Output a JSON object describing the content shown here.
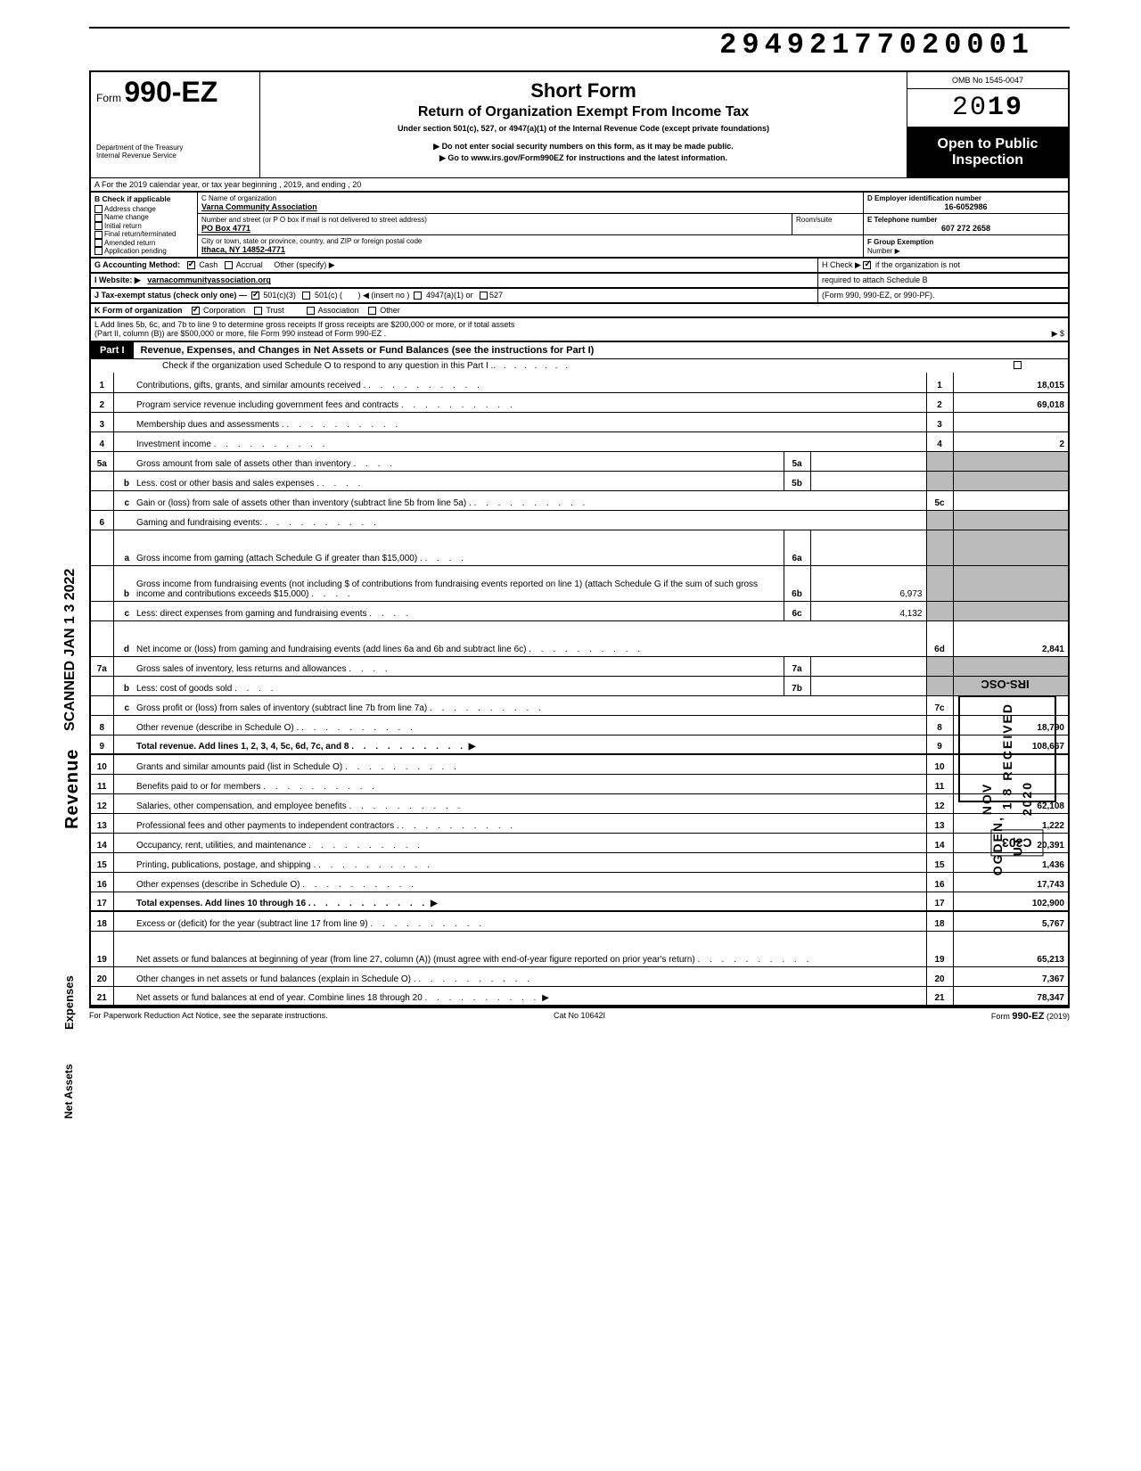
{
  "dln": "29492177020001",
  "form": {
    "prefix": "Form",
    "number": "990-EZ",
    "title": "Short Form",
    "subtitle": "Return of Organization Exempt From Income Tax",
    "under": "Under section 501(c), 527, or 4947(a)(1) of the Internal Revenue Code (except private foundations)",
    "warn": "▶ Do not enter social security numbers on this form, as it may be made public.",
    "goto": "▶ Go to www.irs.gov/Form990EZ for instructions and the latest information.",
    "dept1": "Department of the Treasury",
    "dept2": "Internal Revenue Service",
    "omb": "OMB No  1545-0047",
    "year_outline": "20",
    "year_bold": "19",
    "open1": "Open to Public",
    "open2": "Inspection"
  },
  "lineA": "A  For the 2019 calendar year, or tax year beginning                                                                              , 2019, and ending                                          , 20",
  "B": {
    "title": "B  Check if applicable",
    "items": [
      "Address change",
      "Name change",
      "Initial return",
      "Final return/terminated",
      "Amended return",
      "Application pending"
    ]
  },
  "C": {
    "lbl_name": "C  Name of organization",
    "name": "Varna Community Association",
    "lbl_addr": "Number and street (or P O  box if mail is not delivered to street address)",
    "room": "Room/suite",
    "addr": "PO Box 4771",
    "lbl_city": "City or town, state or province, country, and ZIP or foreign postal code",
    "city": "Ithaca, NY 14852-4771"
  },
  "D": {
    "lbl": "D Employer identification number",
    "val": "16-6052986"
  },
  "E": {
    "lbl": "E  Telephone number",
    "val": "607 272 2658"
  },
  "F": {
    "lbl": "F  Group Exemption",
    "lbl2": "Number ▶"
  },
  "G": {
    "lbl": "G  Accounting Method:",
    "cash": "Cash",
    "accr": "Accrual",
    "other": "Other (specify) ▶"
  },
  "H": {
    "txt1": "H  Check ▶",
    "txt2": "if the organization is not",
    "txt3": "required to attach Schedule B",
    "txt4": "(Form 990, 990-EZ, or 990-PF)."
  },
  "I": {
    "lbl": "I   Website: ▶",
    "val": "varnacommunityassociation.org"
  },
  "J": {
    "lbl": "J  Tax-exempt status (check only one) —",
    "a": "501(c)(3)",
    "b": "501(c) (",
    "b2": ")  ◀ (insert no )",
    "c": "4947(a)(1) or",
    "d": "527"
  },
  "K": {
    "lbl": "K  Form of organization",
    "a": "Corporation",
    "b": "Trust",
    "c": "Association",
    "d": "Other"
  },
  "L": {
    "l1": "L  Add lines 5b, 6c, and 7b to line 9 to determine gross receipts  If gross receipts are $200,000 or more, or if total assets",
    "l2": "(Part II, column (B)) are $500,000 or more, file Form 990 instead of Form 990-EZ .",
    "arrow": "▶   $"
  },
  "part1": {
    "tab": "Part I",
    "title": "Revenue, Expenses, and Changes in Net Assets or Fund Balances (see the instructions for Part I)",
    "check_o": "Check if the organization used Schedule O to respond to any question in this Part I ."
  },
  "rows": [
    {
      "no": "1",
      "sub": "",
      "desc": "Contributions, gifts, grants, and similar amounts received .",
      "rn": "1",
      "amt": "18,015"
    },
    {
      "no": "2",
      "sub": "",
      "desc": "Program service revenue including government fees and contracts",
      "rn": "2",
      "amt": "69,018"
    },
    {
      "no": "3",
      "sub": "",
      "desc": "Membership dues and assessments .",
      "rn": "3",
      "amt": ""
    },
    {
      "no": "4",
      "sub": "",
      "desc": "Investment income",
      "rn": "4",
      "amt": "2"
    },
    {
      "no": "5a",
      "sub": "",
      "desc": "Gross amount from sale of assets other than inventory",
      "mn": "5a",
      "mv": "",
      "rn": "",
      "amt": "",
      "shade": true
    },
    {
      "no": "",
      "sub": "b",
      "desc": "Less. cost or other basis and sales expenses .",
      "mn": "5b",
      "mv": "",
      "rn": "",
      "amt": "",
      "shade": true
    },
    {
      "no": "",
      "sub": "c",
      "desc": "Gain or (loss) from sale of assets other than inventory (subtract line 5b from line 5a)   .",
      "rn": "5c",
      "amt": ""
    },
    {
      "no": "6",
      "sub": "",
      "desc": "Gaming and fundraising events:",
      "rn": "",
      "amt": "",
      "shade": true,
      "nounder": true
    },
    {
      "no": "",
      "sub": "a",
      "desc": "Gross income from gaming (attach Schedule G if greater than $15,000) .",
      "mn": "6a",
      "mv": "",
      "rn": "",
      "amt": "",
      "shade": true,
      "tall": true
    },
    {
      "no": "",
      "sub": "b",
      "desc": "Gross income from fundraising events (not including  $                                 of contributions from fundraising events reported on line 1) (attach Schedule G if the sum of such gross income and contributions exceeds $15,000)",
      "mn": "6b",
      "mv": "6,973",
      "rn": "",
      "amt": "",
      "shade": true,
      "tall": true
    },
    {
      "no": "",
      "sub": "c",
      "desc": "Less: direct expenses from gaming and fundraising events",
      "mn": "6c",
      "mv": "4,132",
      "rn": "",
      "amt": "",
      "shade": true
    },
    {
      "no": "",
      "sub": "d",
      "desc": "Net income or (loss) from gaming and fundraising events (add lines 6a and 6b and subtract line 6c)",
      "rn": "6d",
      "amt": "2,841",
      "tall": true
    },
    {
      "no": "7a",
      "sub": "",
      "desc": "Gross sales of inventory, less returns and allowances",
      "mn": "7a",
      "mv": "",
      "rn": "",
      "amt": "",
      "shade": true
    },
    {
      "no": "",
      "sub": "b",
      "desc": "Less: cost of goods sold",
      "mn": "7b",
      "mv": "",
      "rn": "",
      "amt": "",
      "shade": true
    },
    {
      "no": "",
      "sub": "c",
      "desc": "Gross profit or (loss) from sales of inventory (subtract line 7b from line 7a)",
      "rn": "7c",
      "amt": ""
    },
    {
      "no": "8",
      "sub": "",
      "desc": "Other revenue (describe in Schedule O) .",
      "rn": "8",
      "amt": "18,790"
    },
    {
      "no": "9",
      "sub": "",
      "desc": "Total revenue. Add lines 1, 2, 3, 4, 5c, 6d, 7c, and 8",
      "rn": "9",
      "amt": "108,667",
      "bold": true,
      "arrow": true,
      "thick": true
    },
    {
      "no": "10",
      "sub": "",
      "desc": "Grants and similar amounts paid (list in Schedule O)",
      "rn": "10",
      "amt": ""
    },
    {
      "no": "11",
      "sub": "",
      "desc": "Benefits paid to or for members",
      "rn": "11",
      "amt": ""
    },
    {
      "no": "12",
      "sub": "",
      "desc": "Salaries, other compensation, and employee benefits",
      "rn": "12",
      "amt": "62,108"
    },
    {
      "no": "13",
      "sub": "",
      "desc": "Professional fees and other payments to independent contractors .",
      "rn": "13",
      "amt": "1,222"
    },
    {
      "no": "14",
      "sub": "",
      "desc": "Occupancy, rent, utilities, and maintenance",
      "rn": "14",
      "amt": "20,391"
    },
    {
      "no": "15",
      "sub": "",
      "desc": "Printing, publications, postage, and shipping .",
      "rn": "15",
      "amt": "1,436"
    },
    {
      "no": "16",
      "sub": "",
      "desc": "Other expenses (describe in Schedule O)",
      "rn": "16",
      "amt": "17,743"
    },
    {
      "no": "17",
      "sub": "",
      "desc": "Total expenses. Add lines 10 through 16 .",
      "rn": "17",
      "amt": "102,900",
      "bold": true,
      "arrow": true,
      "thick": true
    },
    {
      "no": "18",
      "sub": "",
      "desc": "Excess or (deficit) for the year (subtract line 17 from line 9)",
      "rn": "18",
      "amt": "5,767"
    },
    {
      "no": "19",
      "sub": "",
      "desc": "Net assets or fund balances at beginning of year (from line 27, column (A)) (must agree with end-of-year figure reported on prior year's return)",
      "rn": "19",
      "amt": "65,213",
      "tall": true
    },
    {
      "no": "20",
      "sub": "",
      "desc": "Other changes in net assets or fund balances (explain in Schedule O) .",
      "rn": "20",
      "amt": "7,367"
    },
    {
      "no": "21",
      "sub": "",
      "desc": "Net assets or fund balances at end of year. Combine lines 18 through 20",
      "rn": "21",
      "amt": "78,347",
      "arrow": true,
      "thick": true
    }
  ],
  "footer": {
    "left": "For Paperwork Reduction Act Notice, see the separate instructions.",
    "center": "Cat  No  10642I",
    "right_a": "Form ",
    "right_b": "990-EZ",
    "right_c": "  (2019)"
  },
  "stamps": {
    "irs": "IRS-OSC",
    "recv": "RECEIVED",
    "date": "NOV 1 8 2020",
    "ogden": "OGDEN, UT",
    "c303": "C303"
  },
  "side": {
    "scanned": "SCANNED JAN 1 3 2022",
    "revenue": "Revenue",
    "expenses": "Expenses",
    "netassets": "Net Assets"
  },
  "colors": {
    "black": "#000000",
    "shade": "#bbbbbb",
    "white": "#ffffff"
  }
}
